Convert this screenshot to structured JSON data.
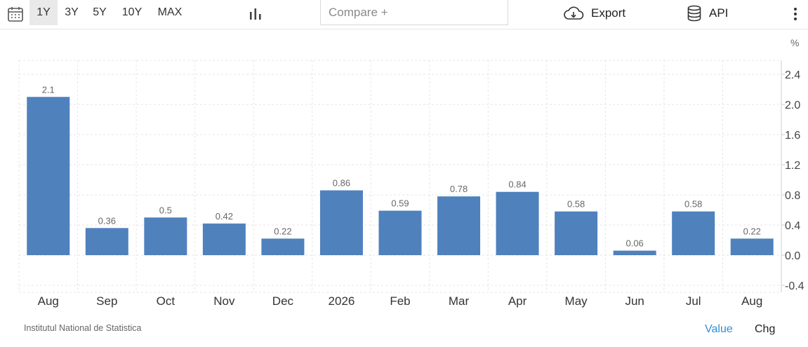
{
  "toolbar": {
    "ranges": [
      "1Y",
      "3Y",
      "5Y",
      "10Y",
      "MAX"
    ],
    "active_range": "1Y",
    "compare_placeholder": "Compare +",
    "export_label": "Export",
    "api_label": "API"
  },
  "footer": {
    "source": "Institutul National de Statistica",
    "value_label": "Value",
    "chg_label": "Chg"
  },
  "colors": {
    "bar": "#4f81bd",
    "active_mode": "#2e8fd6",
    "grid": "#e5e5e5"
  },
  "chart_data": {
    "type": "bar",
    "categories": [
      "Aug",
      "Sep",
      "Oct",
      "Nov",
      "Dec",
      "2026",
      "Feb",
      "Mar",
      "Apr",
      "May",
      "Jun",
      "Jul",
      "Aug"
    ],
    "values": [
      2.1,
      0.36,
      0.5,
      0.42,
      0.22,
      0.86,
      0.59,
      0.78,
      0.84,
      0.58,
      0.06,
      0.58,
      0.22
    ],
    "data_labels": [
      "2.1",
      "0.36",
      "0.5",
      "0.42",
      "0.22",
      "0.86",
      "0.59",
      "0.78",
      "0.84",
      "0.58",
      "0.06",
      "0.58",
      "0.22"
    ],
    "y_ticks": [
      "2.4",
      "2.0",
      "1.6",
      "1.2",
      "0.8",
      "0.4",
      "0.0",
      "-0.4"
    ],
    "y_tick_values": [
      2.4,
      2.0,
      1.6,
      1.2,
      0.8,
      0.4,
      0.0,
      -0.4
    ],
    "ylim": [
      -0.5,
      2.6
    ],
    "unit": "%",
    "y_axis_position": "right",
    "grid": true,
    "legend": "none"
  }
}
